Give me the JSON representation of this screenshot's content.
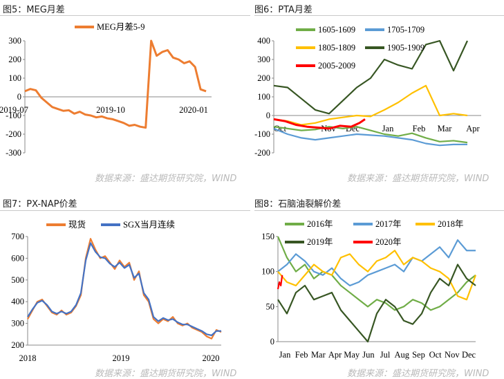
{
  "panel_titles": {
    "fig5": "图5：MEG月差",
    "fig6": "图6：PTA月差",
    "fig7": "图7：PX-NAP价差",
    "fig8": "图8：石脑油裂解价差"
  },
  "source": "数据来源：盛达期货研究院，WIND",
  "colors": {
    "meg": "#ed7d31",
    "pta_1605": "#70ad47",
    "pta_1705": "#5b9bd5",
    "pta_1805": "#ffc000",
    "pta_1905": "#375623",
    "pta_2005": "#ff0000",
    "px_spot": "#ed7d31",
    "px_sgx": "#4472c4",
    "nap_2016": "#70ad47",
    "nap_2017": "#5b9bd5",
    "nap_2018": "#ffc000",
    "nap_2019": "#375623",
    "nap_2020": "#ff0000"
  },
  "chart_data": [
    {
      "id": "fig5",
      "type": "line",
      "title": "MEG月差",
      "ylim": [
        -300,
        300
      ],
      "yticks": [
        300,
        200,
        100,
        0,
        -100,
        -200,
        -300
      ],
      "xticks": [
        "2019-07",
        "2019-10",
        "2020-01"
      ],
      "series": [
        {
          "name": "MEG月差5-9",
          "color_key": "meg",
          "x": [
            0,
            1,
            2,
            3,
            4,
            5,
            6,
            7,
            8,
            9,
            10,
            11,
            12,
            13,
            14,
            15,
            16,
            17,
            18,
            19,
            20,
            21,
            22,
            23,
            24,
            25,
            26,
            27,
            28,
            29,
            30,
            31,
            32,
            33
          ],
          "values": [
            30,
            42,
            35,
            -5,
            -30,
            -55,
            -65,
            -75,
            -72,
            -90,
            -80,
            -95,
            -100,
            -110,
            -105,
            -115,
            -120,
            -130,
            -140,
            -155,
            -150,
            -160,
            -165,
            300,
            220,
            240,
            250,
            210,
            200,
            180,
            190,
            160,
            40,
            30
          ]
        }
      ]
    },
    {
      "id": "fig6",
      "type": "line",
      "title": "PTA月差",
      "ylim": [
        -200,
        400
      ],
      "yticks": [
        400,
        300,
        200,
        100,
        0,
        -100,
        -200
      ],
      "xticks": [
        "Oct",
        "Nov",
        "Dec",
        "Jan",
        "Feb",
        "Mar",
        "Apr"
      ],
      "series": [
        {
          "name": "1605-1609",
          "color_key": "pta_1605",
          "x": [
            0,
            0.5,
            1,
            1.5,
            2,
            2.5,
            3,
            3.5,
            4,
            4.5,
            5,
            5.5,
            6,
            6.5,
            7
          ],
          "values": [
            -60,
            -70,
            -80,
            -75,
            -60,
            -70,
            -60,
            -80,
            -100,
            -110,
            -95,
            -120,
            -140,
            -135,
            -145
          ]
        },
        {
          "name": "1705-1709",
          "color_key": "pta_1705",
          "x": [
            0,
            0.5,
            1,
            1.5,
            2,
            2.5,
            3,
            3.5,
            4,
            4.5,
            5,
            5.5,
            6,
            6.5,
            7
          ],
          "values": [
            -70,
            -100,
            -120,
            -130,
            -120,
            -110,
            -100,
            -105,
            -110,
            -120,
            -130,
            -150,
            -160,
            -155,
            -155
          ]
        },
        {
          "name": "1805-1809",
          "color_key": "pta_1805",
          "x": [
            0,
            0.5,
            1,
            1.5,
            2,
            2.5,
            3,
            3.5,
            4,
            4.5,
            5,
            5.5,
            6,
            6.5,
            7
          ],
          "values": [
            -20,
            -30,
            -50,
            -40,
            -20,
            -10,
            0,
            -5,
            30,
            70,
            120,
            160,
            0,
            10,
            0
          ]
        },
        {
          "name": "1905-1909",
          "color_key": "pta_1905",
          "x": [
            0,
            0.5,
            1,
            1.5,
            2,
            2.5,
            3,
            3.5,
            4,
            4.5,
            5,
            5.5,
            6,
            6.5,
            7
          ],
          "values": [
            160,
            150,
            90,
            30,
            10,
            80,
            150,
            200,
            300,
            270,
            250,
            380,
            400,
            240,
            400
          ]
        },
        {
          "name": "2005-2009",
          "color_key": "pta_2005",
          "x": [
            0,
            0.4,
            0.8,
            1.2,
            1.6,
            2.0,
            2.4,
            2.8,
            3.1,
            3.3
          ],
          "values": [
            -20,
            -30,
            -50,
            -60,
            -65,
            -70,
            -55,
            -60,
            -40,
            -20
          ]
        }
      ]
    },
    {
      "id": "fig7",
      "type": "line",
      "title": "PX-NAP价差",
      "ylim": [
        200,
        700
      ],
      "yticks": [
        700,
        600,
        500,
        400,
        300,
        200
      ],
      "xticks": [
        "2018",
        "2019",
        "2020"
      ],
      "series": [
        {
          "name": "现货",
          "color_key": "px_spot",
          "x": [
            0,
            0.05,
            0.1,
            0.15,
            0.2,
            0.25,
            0.3,
            0.35,
            0.4,
            0.45,
            0.5,
            0.55,
            0.6,
            0.65,
            0.7,
            0.75,
            0.8,
            0.85,
            0.9,
            0.95,
            1.0,
            1.05,
            1.1,
            1.15,
            1.2,
            1.25,
            1.3,
            1.35,
            1.4,
            1.45,
            1.5,
            1.55,
            1.6,
            1.65,
            1.7,
            1.75,
            1.8,
            1.85,
            1.9,
            1.95,
            2.0
          ],
          "values": [
            320,
            360,
            400,
            410,
            380,
            350,
            340,
            360,
            340,
            350,
            380,
            430,
            600,
            690,
            640,
            600,
            610,
            580,
            550,
            590,
            560,
            580,
            500,
            540,
            430,
            400,
            320,
            300,
            320,
            310,
            330,
            300,
            290,
            300,
            280,
            270,
            260,
            240,
            230,
            270,
            260
          ]
        },
        {
          "name": "SGX当月连续",
          "color_key": "px_sgx",
          "x": [
            0,
            0.05,
            0.1,
            0.15,
            0.2,
            0.25,
            0.3,
            0.35,
            0.4,
            0.45,
            0.5,
            0.55,
            0.6,
            0.65,
            0.7,
            0.75,
            0.8,
            0.85,
            0.9,
            0.95,
            1.0,
            1.05,
            1.1,
            1.15,
            1.2,
            1.25,
            1.3,
            1.35,
            1.4,
            1.45,
            1.5,
            1.55,
            1.6,
            1.65,
            1.7,
            1.75,
            1.8,
            1.85,
            1.9,
            1.95,
            2.0
          ],
          "values": [
            330,
            365,
            395,
            405,
            385,
            355,
            345,
            355,
            345,
            355,
            385,
            440,
            590,
            670,
            630,
            605,
            600,
            575,
            560,
            580,
            555,
            570,
            510,
            530,
            440,
            410,
            330,
            310,
            325,
            315,
            320,
            305,
            295,
            295,
            285,
            275,
            265,
            250,
            245,
            265,
            265
          ]
        }
      ]
    },
    {
      "id": "fig8",
      "type": "line",
      "title": "石脑油裂解价差",
      "ylim": [
        0,
        150
      ],
      "yticks": [
        150,
        100,
        50,
        0
      ],
      "xticks": [
        "Jan",
        "Feb",
        "Mar",
        "Apr",
        "May",
        "Jun",
        "Jul",
        "Aug",
        "Sep",
        "Oct",
        "Nov",
        "Dec"
      ],
      "series": [
        {
          "name": "2016年",
          "color_key": "nap_2016",
          "x": [
            0,
            0.5,
            1,
            1.5,
            2,
            2.5,
            3,
            3.5,
            4,
            4.5,
            5,
            5.5,
            6,
            6.5,
            7,
            7.5,
            8,
            8.5,
            9,
            9.5,
            10,
            10.5,
            11
          ],
          "values": [
            150,
            120,
            100,
            110,
            90,
            100,
            95,
            80,
            70,
            60,
            50,
            60,
            55,
            45,
            50,
            60,
            55,
            45,
            50,
            60,
            70,
            85,
            95
          ]
        },
        {
          "name": "2017年",
          "color_key": "nap_2017",
          "x": [
            0,
            0.5,
            1,
            1.5,
            2,
            2.5,
            3,
            3.5,
            4,
            4.5,
            5,
            5.5,
            6,
            6.5,
            7,
            7.5,
            8,
            8.5,
            9,
            9.5,
            10,
            10.5,
            11
          ],
          "values": [
            100,
            110,
            125,
            115,
            100,
            95,
            105,
            90,
            80,
            85,
            95,
            100,
            105,
            110,
            100,
            120,
            115,
            125,
            135,
            120,
            145,
            130,
            130
          ]
        },
        {
          "name": "2018年",
          "color_key": "nap_2018",
          "x": [
            0,
            0.5,
            1,
            1.5,
            2,
            2.5,
            3,
            3.5,
            4,
            4.5,
            5,
            5.5,
            6,
            6.5,
            7,
            7.5,
            8,
            8.5,
            9,
            9.5,
            10,
            10.5,
            11
          ],
          "values": [
            100,
            85,
            80,
            95,
            110,
            100,
            95,
            120,
            125,
            110,
            100,
            115,
            120,
            130,
            110,
            120,
            115,
            105,
            100,
            90,
            65,
            60,
            95
          ]
        },
        {
          "name": "2019年",
          "color_key": "nap_2019",
          "x": [
            0,
            0.5,
            1,
            1.5,
            2,
            2.5,
            3,
            3.5,
            4,
            4.5,
            5,
            5.5,
            6,
            6.5,
            7,
            7.5,
            8,
            8.5,
            9,
            9.5,
            10,
            10.5,
            11
          ],
          "values": [
            60,
            40,
            70,
            80,
            60,
            65,
            70,
            45,
            30,
            15,
            0,
            40,
            60,
            50,
            30,
            25,
            40,
            70,
            90,
            80,
            110,
            90,
            80
          ]
        },
        {
          "name": "2020年",
          "color_key": "nap_2020",
          "x": [
            0,
            0.08,
            0.16,
            0.24
          ],
          "values": [
            75,
            85,
            80,
            95
          ]
        }
      ]
    }
  ]
}
